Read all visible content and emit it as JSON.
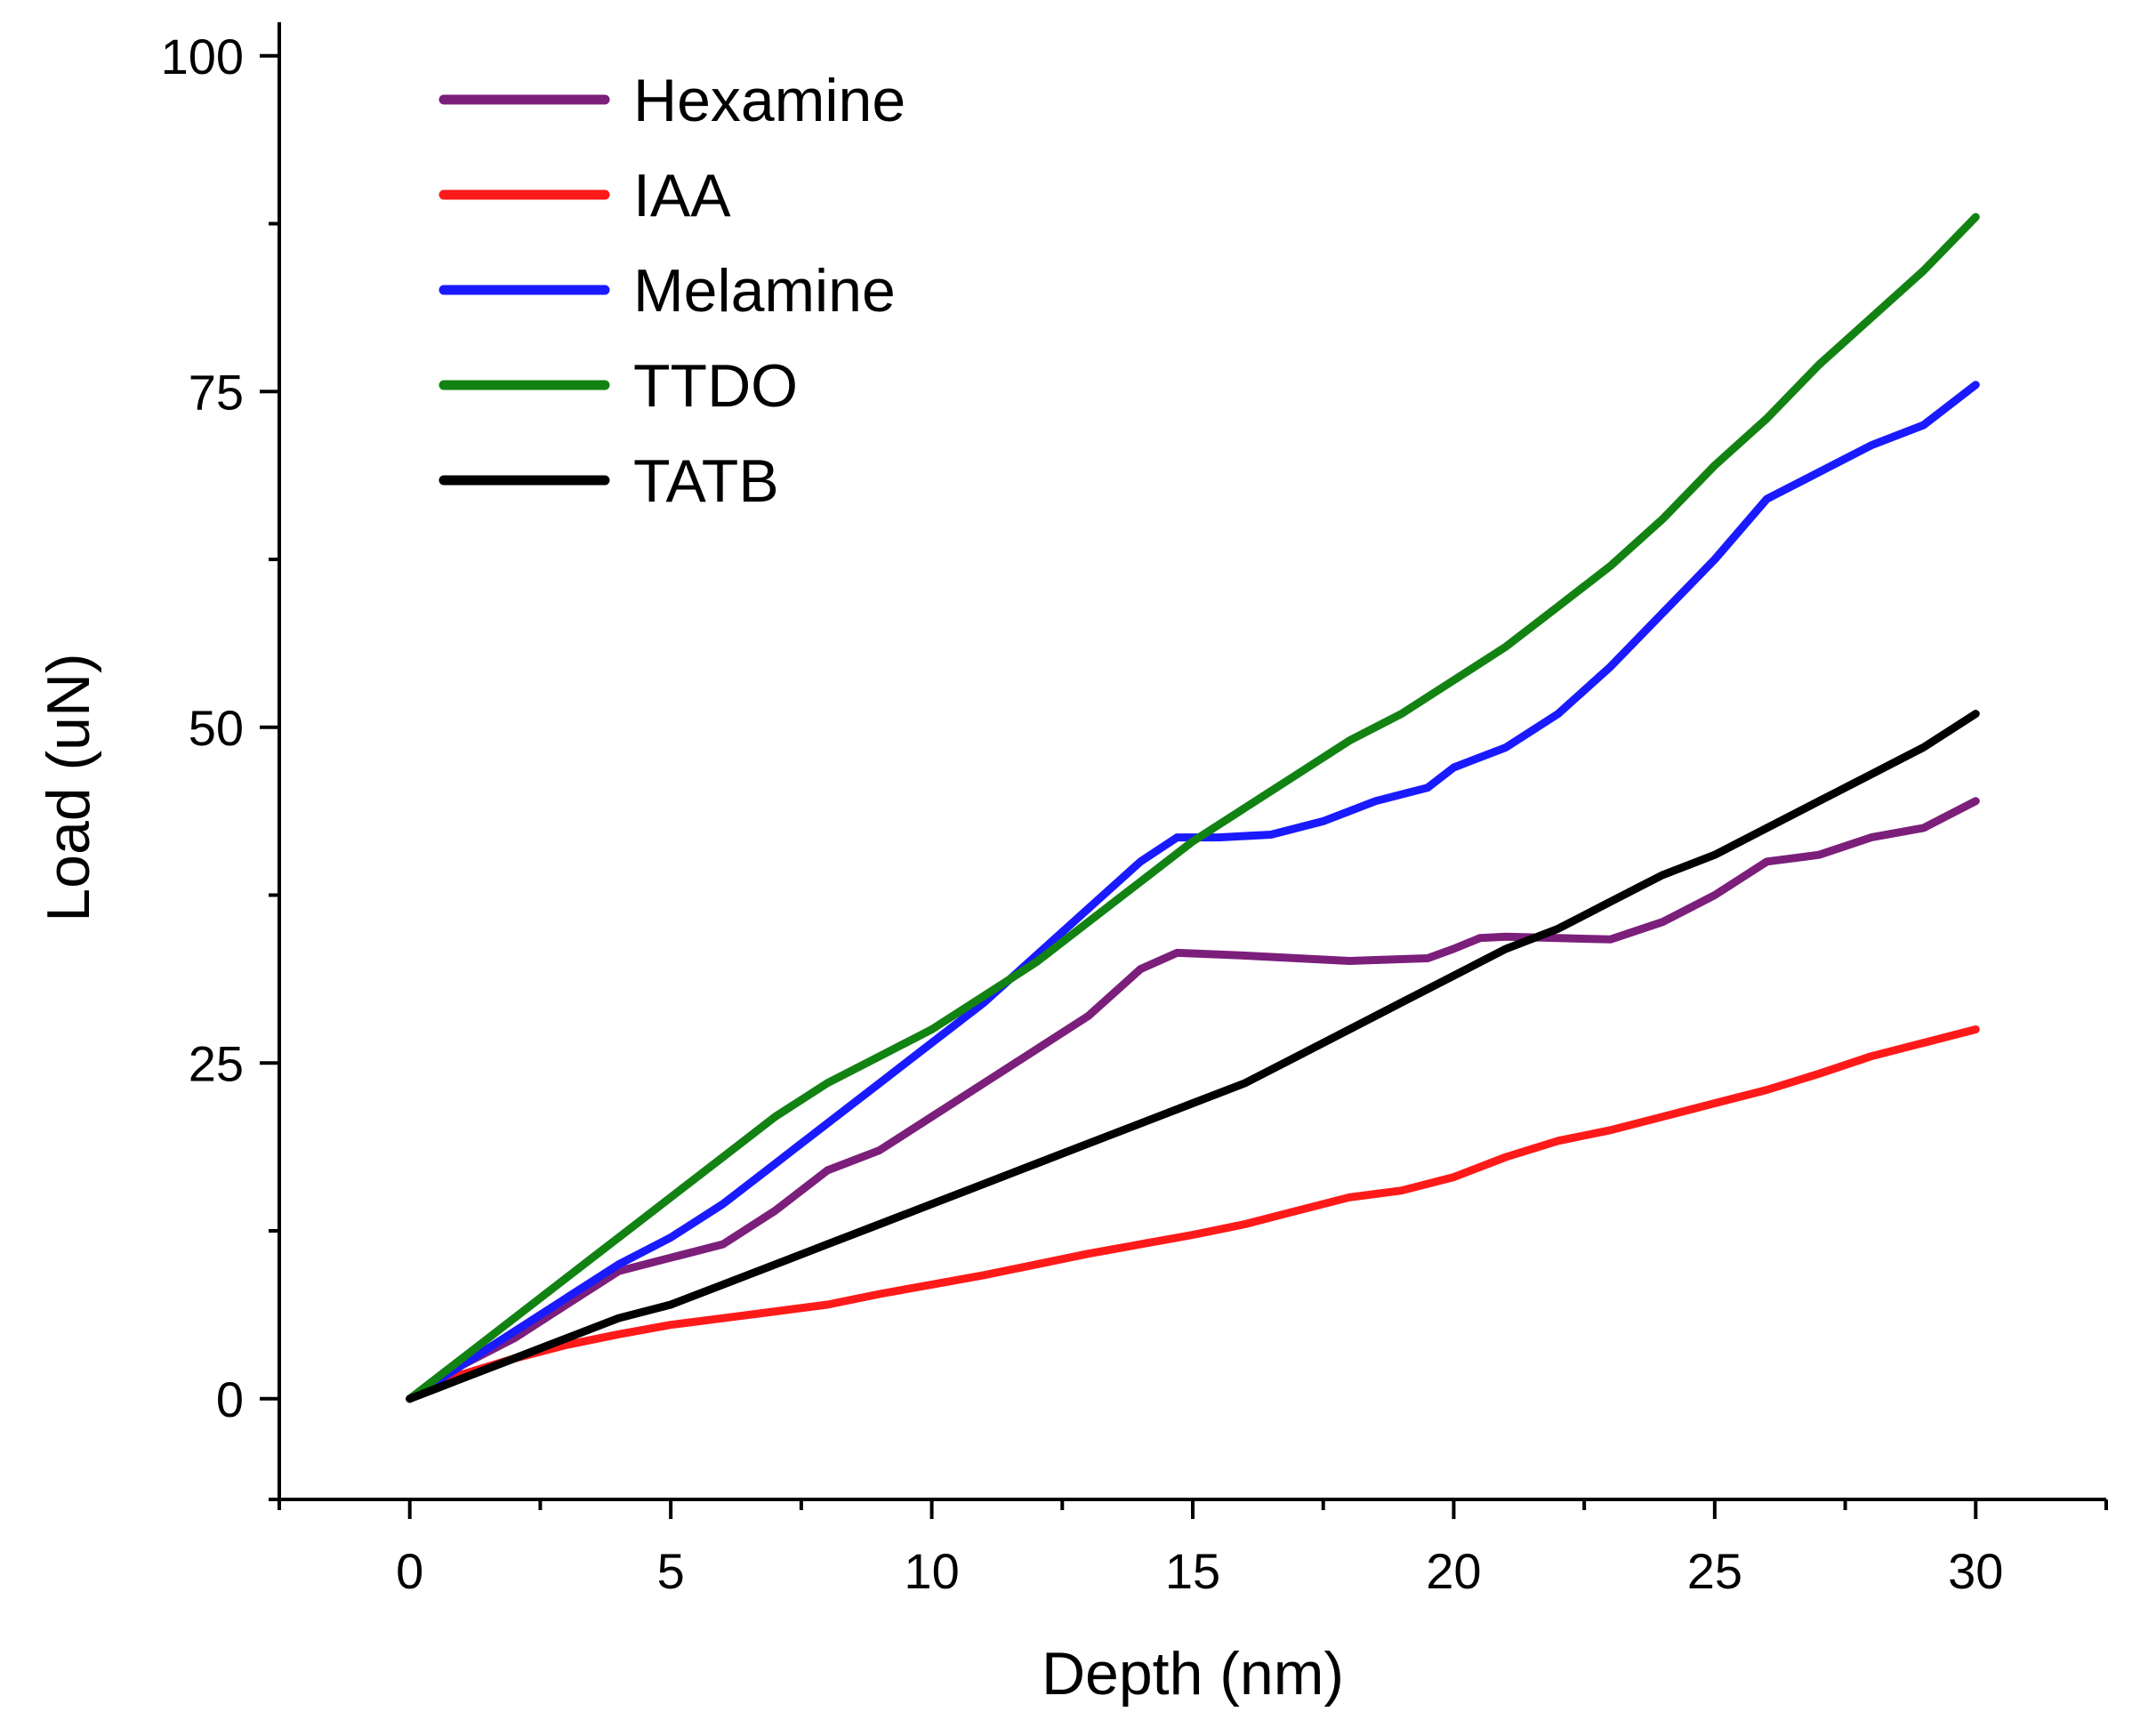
{
  "chart_data": {
    "type": "line",
    "title": "",
    "xlabel": "Depth (nm)",
    "ylabel": "Load (uN)",
    "xlim": [
      -2.5,
      32.5
    ],
    "ylim": [
      -7.5,
      102.5
    ],
    "xticks": [
      0,
      5,
      10,
      15,
      20,
      25,
      30
    ],
    "xtick_labels": [
      "0",
      "5",
      "10",
      "15",
      "20",
      "25",
      "30"
    ],
    "yticks": [
      0,
      25,
      50,
      75,
      100
    ],
    "ytick_labels": [
      "0",
      "25",
      "50",
      "75",
      "100"
    ],
    "xminor": [
      -2.5,
      2.5,
      7.5,
      12.5,
      17.5,
      22.5,
      27.5,
      32.5
    ],
    "yminor": [
      -7.5,
      12.5,
      37.5,
      62.5,
      87.5
    ],
    "grid": false,
    "legend_position": "top-left",
    "series": [
      {
        "name": "Hexamine",
        "color": "#7b1f7b",
        "x": [
          0,
          1,
          2,
          3,
          4,
          5,
          6,
          7,
          8,
          9,
          10,
          11,
          12,
          13,
          14,
          14.7,
          16,
          18,
          19.5,
          20,
          20.5,
          21,
          22,
          23,
          24,
          25,
          26,
          27,
          28,
          29,
          30
        ],
        "y": [
          0,
          2.5,
          4.5,
          7,
          9.5,
          10.5,
          11.5,
          14,
          17,
          18.5,
          21,
          23.5,
          26,
          28.5,
          32,
          33.2,
          33,
          32.6,
          32.8,
          33.5,
          34.3,
          34.4,
          34.3,
          34.2,
          35.5,
          37.5,
          40,
          40.5,
          41.8,
          42.5,
          44.5
        ]
      },
      {
        "name": "IAA",
        "color": "#ff1a1a",
        "x": [
          0,
          1,
          2,
          3,
          4,
          5,
          6,
          7,
          8,
          9,
          10,
          11,
          12,
          13,
          14,
          15,
          16,
          17,
          18,
          19,
          20,
          21,
          22,
          23,
          24,
          25,
          26,
          27,
          28,
          29,
          30
        ],
        "y": [
          0,
          1.8,
          3,
          4,
          4.8,
          5.5,
          6,
          6.5,
          7,
          7.8,
          8.5,
          9.2,
          10,
          10.8,
          11.5,
          12.2,
          13,
          14,
          15,
          15.5,
          16.5,
          18,
          19.2,
          20,
          21,
          22,
          23,
          24.2,
          25.5,
          26.5,
          27.5
        ]
      },
      {
        "name": "Melamine",
        "color": "#1a1aff",
        "x": [
          0,
          1,
          2,
          3,
          4,
          5,
          6,
          7,
          8,
          9,
          10,
          11,
          12,
          13,
          14,
          14.7,
          15.5,
          16.5,
          17.5,
          18.5,
          19.5,
          20,
          21,
          22,
          23,
          24,
          25,
          26,
          27,
          28,
          29,
          30
        ],
        "y": [
          0,
          2.5,
          5,
          7.5,
          10,
          12,
          14.5,
          17.5,
          20.5,
          23.5,
          26.5,
          29.5,
          33,
          36.5,
          40,
          41.8,
          41.8,
          42,
          43,
          44.5,
          45.5,
          47,
          48.5,
          51,
          54.5,
          58.5,
          62.5,
          67,
          69,
          71,
          72.5,
          75.5
        ]
      },
      {
        "name": "TTDO",
        "color": "#128212",
        "x": [
          0,
          1,
          2,
          3,
          4,
          5,
          6,
          7,
          8,
          9,
          10,
          11,
          12,
          13,
          14,
          15,
          16,
          17,
          18,
          19,
          20,
          21,
          22,
          23,
          24,
          25,
          26,
          27,
          28,
          29,
          30
        ],
        "y": [
          0,
          3,
          6,
          9,
          12,
          15,
          18,
          21,
          23.5,
          25.5,
          27.5,
          30,
          32.5,
          35.5,
          38.5,
          41.5,
          44,
          46.5,
          49,
          51,
          53.5,
          56,
          59,
          62,
          65.5,
          69.5,
          73,
          77,
          80.5,
          84,
          88
        ]
      },
      {
        "name": "TATB",
        "color": "#000000",
        "x": [
          0,
          1,
          2,
          3,
          4,
          5,
          6,
          7,
          8,
          9,
          10,
          11,
          12,
          13,
          14,
          15,
          16,
          17,
          18,
          19,
          20,
          21,
          22,
          23,
          24,
          25,
          26,
          27,
          28,
          29,
          30
        ],
        "y": [
          0,
          1.5,
          3,
          4.5,
          6,
          7,
          8.5,
          10,
          11.5,
          13,
          14.5,
          16,
          17.5,
          19,
          20.5,
          22,
          23.5,
          25.5,
          27.5,
          29.5,
          31.5,
          33.5,
          35,
          37,
          39,
          40.5,
          42.5,
          44.5,
          46.5,
          48.5,
          51
        ]
      }
    ]
  }
}
